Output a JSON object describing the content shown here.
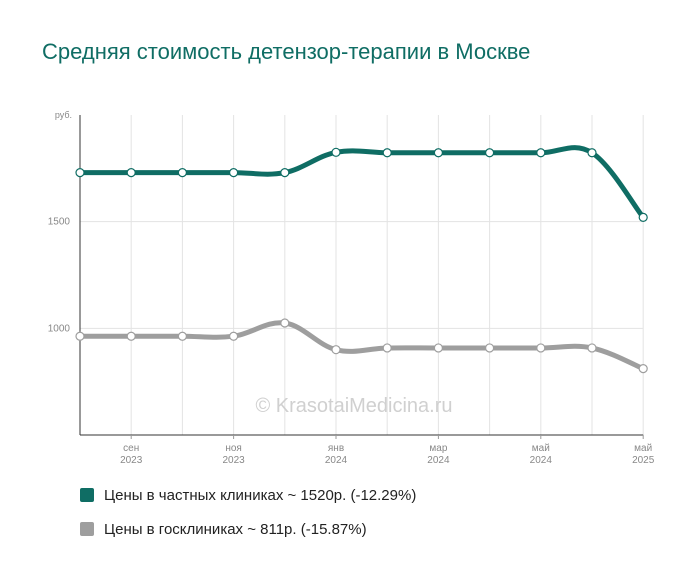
{
  "chart_data": {
    "type": "line",
    "title": "Средняя стоимость детензор-терапии в Москве",
    "ylabel": "руб.",
    "watermark": "© KrasotaiMedicina.ru",
    "ylim": [
      500,
      2000
    ],
    "yticks": [
      {
        "value": 1500,
        "label": "1500"
      },
      {
        "value": 1000,
        "label": "1000"
      }
    ],
    "x_ticks": [
      {
        "index": 1,
        "month": "сен",
        "year": "2023"
      },
      {
        "index": 3,
        "month": "ноя",
        "year": "2023"
      },
      {
        "index": 5,
        "month": "янв",
        "year": "2024"
      },
      {
        "index": 7,
        "month": "мар",
        "year": "2024"
      },
      {
        "index": 9,
        "month": "май",
        "year": "2024"
      },
      {
        "index": 11,
        "month": "май",
        "year": "2025"
      }
    ],
    "points_count": 12,
    "series": [
      {
        "legend": "Цены в частных клиниках ~ 1520р. (-12.29%)",
        "color": "#0f6d64",
        "values": [
          1730,
          1730,
          1730,
          1730,
          1730,
          1825,
          1823,
          1823,
          1823,
          1823,
          1823,
          1520
        ]
      },
      {
        "legend": "Цены в госклиниках ~ 811р. (-15.87%)",
        "color": "#9e9e9e",
        "values": [
          963,
          963,
          963,
          963,
          1025,
          900,
          908,
          908,
          908,
          908,
          908,
          811
        ]
      }
    ]
  }
}
